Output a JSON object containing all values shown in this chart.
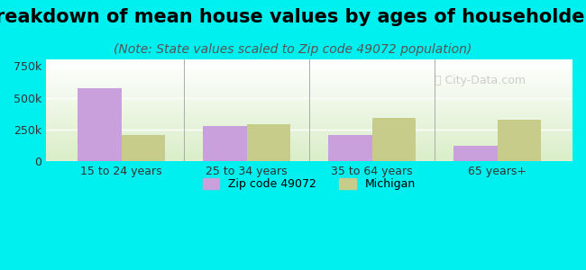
{
  "title": "Breakdown of mean house values by ages of householders",
  "subtitle": "(Note: State values scaled to Zip code 49072 population)",
  "categories": [
    "15 to 24 years",
    "25 to 34 years",
    "35 to 64 years",
    "65 years+"
  ],
  "zip_values": [
    575000,
    275000,
    210000,
    120000
  ],
  "mi_values": [
    205000,
    290000,
    345000,
    325000
  ],
  "zip_color": "#C9A0DC",
  "mi_color": "#C8CC8A",
  "ylim": [
    0,
    800000
  ],
  "yticks": [
    0,
    250000,
    500000,
    750000
  ],
  "ytick_labels": [
    "0",
    "250k",
    "500k",
    "750k"
  ],
  "background_outer": "#00EFEF",
  "background_inner_top": "#ffffff",
  "background_inner_bottom": "#d4eac8",
  "legend_zip_label": "Zip code 49072",
  "legend_mi_label": "Michigan",
  "bar_width": 0.35,
  "title_fontsize": 15,
  "subtitle_fontsize": 10
}
